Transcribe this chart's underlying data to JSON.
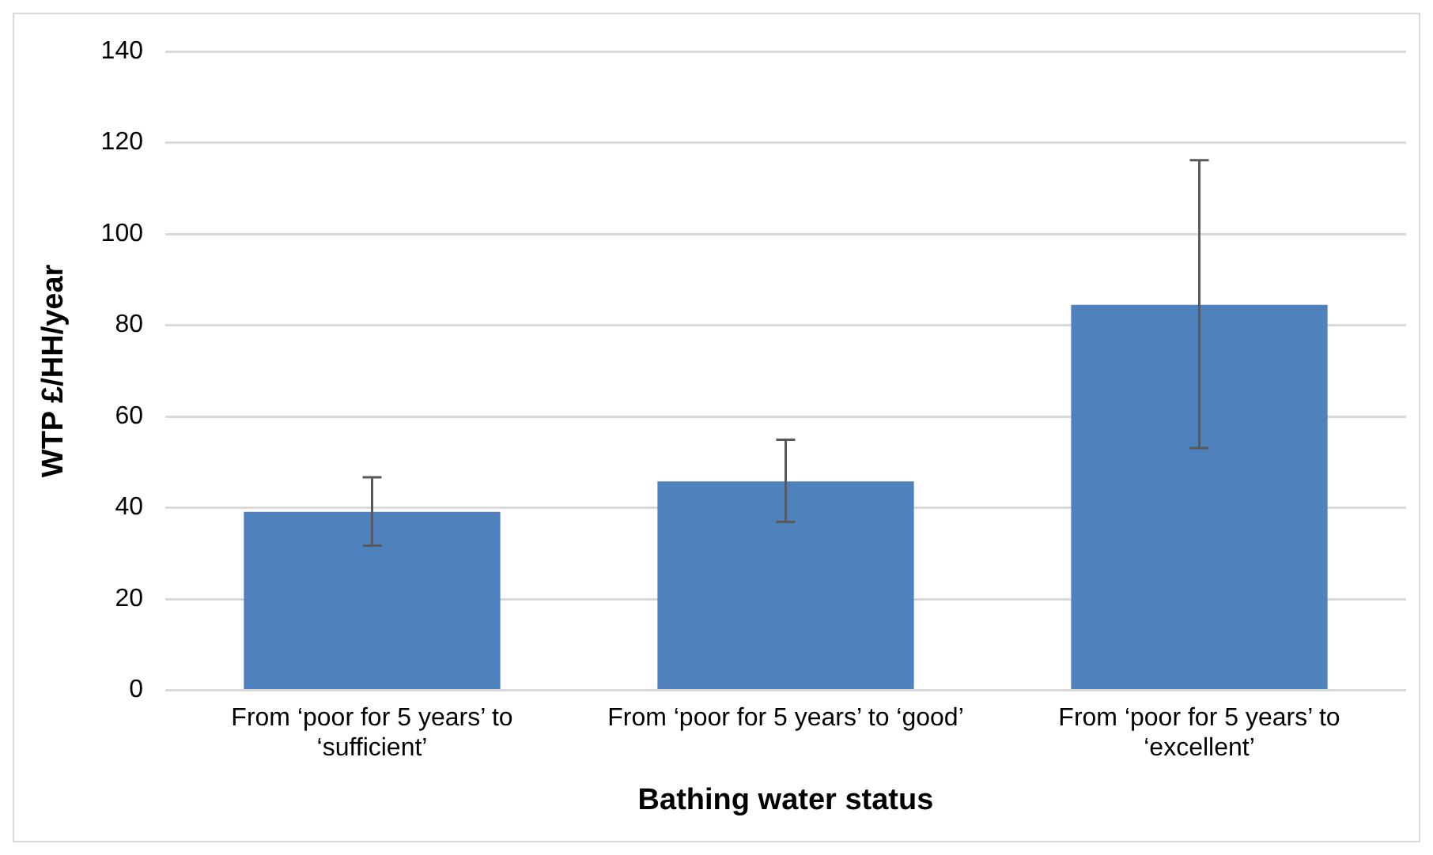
{
  "chart_data": {
    "type": "bar",
    "xlabel": "Bathing water status",
    "ylabel": "WTP £/HH/year",
    "categories": [
      "From ‘poor for 5 years’ to ‘sufficient’",
      "From ‘poor for 5 years’ to ‘good’",
      "From ‘poor for 5 years’ to ‘excellent’"
    ],
    "values": [
      39.1,
      45.8,
      84.5
    ],
    "errors": [
      [
        31.7,
        46.7
      ],
      [
        36.9,
        54.9
      ],
      [
        53.1,
        116.2
      ]
    ],
    "color": "#4f81bd",
    "ylim": [
      0,
      140
    ],
    "yticks": [
      0,
      20,
      40,
      60,
      80,
      100,
      120,
      140
    ],
    "grid": "y"
  }
}
